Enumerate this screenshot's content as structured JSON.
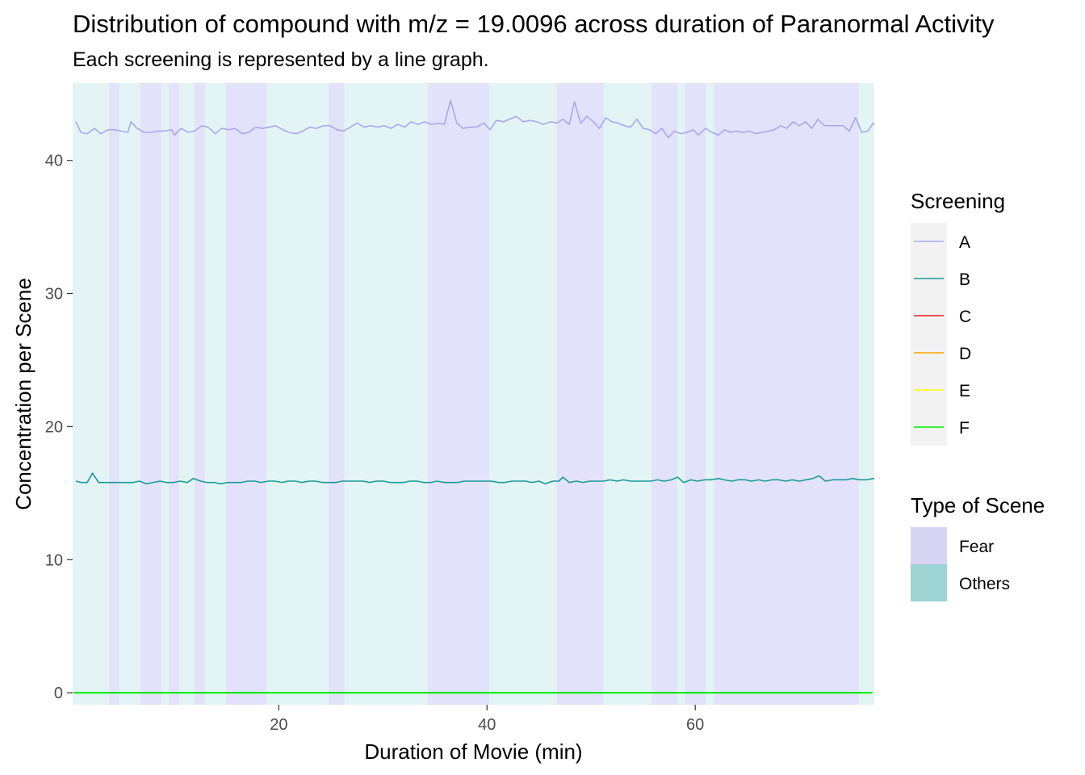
{
  "chart_data": {
    "type": "line",
    "title": "Distribution of compound with m/z = 19.0096 across duration of Paranormal Activity",
    "subtitle": "Each screening is represented by a line graph.",
    "xlabel": "Duration of Movie (min)",
    "ylabel": "Concentration per Scene",
    "xlim": [
      0.2,
      77.2
    ],
    "ylim": [
      -0.9,
      45.8
    ],
    "x_ticks": [
      20,
      40,
      60
    ],
    "y_ticks": [
      0,
      10,
      20,
      30,
      40
    ],
    "grid": false,
    "legend_placement": "right",
    "scene_legend": {
      "title": "Type of Scene",
      "items": [
        {
          "name": "Fear",
          "color": "#d8d4f4"
        },
        {
          "name": "Others",
          "color": "#9dd3d3"
        }
      ]
    },
    "scene_bands": {
      "others_color": "#e3f4f4",
      "fear_color": "#e3e2fb",
      "fear_intervals": [
        [
          3.7,
          4.7
        ],
        [
          6.7,
          8.7
        ],
        [
          9.4,
          10.4
        ],
        [
          11.9,
          12.9
        ],
        [
          14.9,
          18.8
        ],
        [
          24.8,
          26.3
        ],
        [
          34.3,
          40.2
        ],
        [
          46.7,
          51.2
        ],
        [
          55.8,
          58.3
        ],
        [
          59.0,
          61.0
        ],
        [
          61.8,
          75.7
        ]
      ]
    },
    "series_legend_title": "Screening",
    "series": [
      {
        "name": "A",
        "color": "#a8a8ee",
        "points": [
          [
            0.5,
            42.9
          ],
          [
            1.0,
            42.1
          ],
          [
            1.6,
            42.0
          ],
          [
            2.3,
            42.4
          ],
          [
            2.9,
            42.0
          ],
          [
            3.6,
            42.3
          ],
          [
            4.2,
            42.3
          ],
          [
            4.9,
            42.2
          ],
          [
            5.5,
            42.1
          ],
          [
            5.8,
            42.9
          ],
          [
            6.4,
            42.4
          ],
          [
            7.1,
            42.1
          ],
          [
            7.7,
            42.1
          ],
          [
            8.4,
            42.2
          ],
          [
            9.0,
            42.2
          ],
          [
            9.7,
            42.3
          ],
          [
            10.0,
            41.9
          ],
          [
            10.6,
            42.4
          ],
          [
            11.3,
            42.1
          ],
          [
            11.9,
            42.2
          ],
          [
            12.6,
            42.6
          ],
          [
            13.2,
            42.5
          ],
          [
            13.9,
            42.0
          ],
          [
            14.5,
            42.4
          ],
          [
            15.2,
            42.3
          ],
          [
            15.8,
            42.4
          ],
          [
            16.5,
            42.0
          ],
          [
            17.1,
            42.1
          ],
          [
            17.8,
            42.5
          ],
          [
            18.4,
            42.4
          ],
          [
            19.1,
            42.5
          ],
          [
            19.7,
            42.6
          ],
          [
            20.4,
            42.3
          ],
          [
            21.0,
            42.1
          ],
          [
            21.7,
            42.0
          ],
          [
            22.3,
            42.2
          ],
          [
            23.0,
            42.5
          ],
          [
            23.6,
            42.4
          ],
          [
            24.3,
            42.6
          ],
          [
            24.9,
            42.6
          ],
          [
            25.6,
            42.3
          ],
          [
            26.2,
            42.2
          ],
          [
            26.9,
            42.5
          ],
          [
            27.5,
            42.8
          ],
          [
            28.2,
            42.5
          ],
          [
            28.8,
            42.6
          ],
          [
            29.5,
            42.5
          ],
          [
            30.1,
            42.6
          ],
          [
            30.8,
            42.4
          ],
          [
            31.4,
            42.7
          ],
          [
            32.1,
            42.5
          ],
          [
            32.7,
            42.9
          ],
          [
            33.4,
            42.7
          ],
          [
            34.0,
            42.9
          ],
          [
            34.7,
            42.7
          ],
          [
            35.3,
            42.8
          ],
          [
            35.9,
            42.7
          ],
          [
            36.5,
            44.5
          ],
          [
            37.1,
            42.8
          ],
          [
            37.7,
            42.4
          ],
          [
            38.4,
            42.5
          ],
          [
            39.0,
            42.5
          ],
          [
            39.7,
            42.8
          ],
          [
            40.3,
            42.3
          ],
          [
            40.9,
            43.0
          ],
          [
            41.6,
            42.9
          ],
          [
            42.2,
            43.1
          ],
          [
            42.8,
            43.3
          ],
          [
            43.5,
            42.9
          ],
          [
            44.1,
            43.0
          ],
          [
            44.8,
            42.9
          ],
          [
            45.4,
            42.7
          ],
          [
            46.1,
            42.9
          ],
          [
            46.7,
            42.8
          ],
          [
            47.3,
            43.1
          ],
          [
            47.9,
            42.7
          ],
          [
            48.4,
            44.4
          ],
          [
            49.0,
            42.8
          ],
          [
            49.6,
            43.3
          ],
          [
            50.2,
            42.9
          ],
          [
            50.8,
            42.4
          ],
          [
            51.4,
            43.2
          ],
          [
            52.0,
            42.9
          ],
          [
            52.6,
            42.8
          ],
          [
            53.2,
            42.6
          ],
          [
            53.8,
            42.5
          ],
          [
            54.4,
            43.1
          ],
          [
            55.0,
            42.4
          ],
          [
            55.6,
            42.3
          ],
          [
            56.2,
            42.0
          ],
          [
            56.8,
            42.4
          ],
          [
            57.4,
            41.7
          ],
          [
            58.0,
            42.2
          ],
          [
            58.6,
            42.0
          ],
          [
            59.2,
            42.1
          ],
          [
            59.8,
            42.3
          ],
          [
            60.3,
            41.9
          ],
          [
            61.0,
            42.4
          ],
          [
            61.6,
            42.1
          ],
          [
            62.2,
            41.9
          ],
          [
            62.8,
            42.3
          ],
          [
            63.4,
            42.1
          ],
          [
            64.0,
            42.2
          ],
          [
            64.6,
            42.1
          ],
          [
            65.2,
            42.2
          ],
          [
            65.8,
            42.0
          ],
          [
            66.4,
            42.1
          ],
          [
            67.0,
            42.2
          ],
          [
            67.6,
            42.3
          ],
          [
            68.2,
            42.6
          ],
          [
            68.8,
            42.4
          ],
          [
            69.4,
            42.9
          ],
          [
            70.0,
            42.6
          ],
          [
            70.6,
            42.9
          ],
          [
            71.2,
            42.4
          ],
          [
            71.8,
            43.1
          ],
          [
            72.4,
            42.6
          ],
          [
            73.0,
            42.6
          ],
          [
            73.6,
            42.6
          ],
          [
            74.2,
            42.6
          ],
          [
            74.8,
            42.2
          ],
          [
            75.4,
            43.2
          ],
          [
            76.0,
            42.1
          ],
          [
            76.6,
            42.2
          ],
          [
            77.1,
            42.8
          ],
          [
            77.7,
            42.1
          ],
          [
            78.3,
            41.9
          ]
        ]
      },
      {
        "name": "B",
        "color": "#1a9a9a",
        "points": [
          [
            0.5,
            15.9
          ],
          [
            1.0,
            15.8
          ],
          [
            1.6,
            15.8
          ],
          [
            2.1,
            16.5
          ],
          [
            2.7,
            15.8
          ],
          [
            3.4,
            15.8
          ],
          [
            4.0,
            15.8
          ],
          [
            4.7,
            15.8
          ],
          [
            5.3,
            15.8
          ],
          [
            6.0,
            15.8
          ],
          [
            6.6,
            15.9
          ],
          [
            7.3,
            15.7
          ],
          [
            7.9,
            15.8
          ],
          [
            8.6,
            15.9
          ],
          [
            9.2,
            15.8
          ],
          [
            9.9,
            15.8
          ],
          [
            10.5,
            15.9
          ],
          [
            11.2,
            15.8
          ],
          [
            11.8,
            16.1
          ],
          [
            12.5,
            15.9
          ],
          [
            13.1,
            15.8
          ],
          [
            13.8,
            15.8
          ],
          [
            14.4,
            15.7
          ],
          [
            15.1,
            15.8
          ],
          [
            15.7,
            15.8
          ],
          [
            16.4,
            15.8
          ],
          [
            17.0,
            15.9
          ],
          [
            17.7,
            15.9
          ],
          [
            18.3,
            15.8
          ],
          [
            19.0,
            15.9
          ],
          [
            19.6,
            15.9
          ],
          [
            20.3,
            15.8
          ],
          [
            20.9,
            15.9
          ],
          [
            21.6,
            15.9
          ],
          [
            22.2,
            15.8
          ],
          [
            22.9,
            15.9
          ],
          [
            23.5,
            15.9
          ],
          [
            24.2,
            15.8
          ],
          [
            24.8,
            15.8
          ],
          [
            25.5,
            15.8
          ],
          [
            26.1,
            15.9
          ],
          [
            26.8,
            15.9
          ],
          [
            27.4,
            15.9
          ],
          [
            28.1,
            15.9
          ],
          [
            28.7,
            15.8
          ],
          [
            29.4,
            15.9
          ],
          [
            30.0,
            15.9
          ],
          [
            30.7,
            15.8
          ],
          [
            31.3,
            15.8
          ],
          [
            32.0,
            15.8
          ],
          [
            32.6,
            15.9
          ],
          [
            33.3,
            15.9
          ],
          [
            33.9,
            15.8
          ],
          [
            34.6,
            15.8
          ],
          [
            35.2,
            15.9
          ],
          [
            35.9,
            15.8
          ],
          [
            36.5,
            15.8
          ],
          [
            37.2,
            15.8
          ],
          [
            37.8,
            15.9
          ],
          [
            38.5,
            15.9
          ],
          [
            39.1,
            15.9
          ],
          [
            39.8,
            15.9
          ],
          [
            40.4,
            15.9
          ],
          [
            41.1,
            15.8
          ],
          [
            41.7,
            15.8
          ],
          [
            42.4,
            15.9
          ],
          [
            43.0,
            15.9
          ],
          [
            43.7,
            15.9
          ],
          [
            44.3,
            15.8
          ],
          [
            45.0,
            15.9
          ],
          [
            45.6,
            15.7
          ],
          [
            46.3,
            15.9
          ],
          [
            46.9,
            15.9
          ],
          [
            47.3,
            16.2
          ],
          [
            47.9,
            15.8
          ],
          [
            48.6,
            15.9
          ],
          [
            49.2,
            15.8
          ],
          [
            49.9,
            15.9
          ],
          [
            50.5,
            15.9
          ],
          [
            51.2,
            15.9
          ],
          [
            51.8,
            16.0
          ],
          [
            52.5,
            15.9
          ],
          [
            53.1,
            16.0
          ],
          [
            53.8,
            15.9
          ],
          [
            54.4,
            15.9
          ],
          [
            55.1,
            15.9
          ],
          [
            55.7,
            15.9
          ],
          [
            56.4,
            16.0
          ],
          [
            57.0,
            15.9
          ],
          [
            57.7,
            16.0
          ],
          [
            58.3,
            16.2
          ],
          [
            58.9,
            15.8
          ],
          [
            59.6,
            16.0
          ],
          [
            60.2,
            15.9
          ],
          [
            60.9,
            16.0
          ],
          [
            61.5,
            16.0
          ],
          [
            62.2,
            16.1
          ],
          [
            62.8,
            16.0
          ],
          [
            63.5,
            15.9
          ],
          [
            64.1,
            16.0
          ],
          [
            64.8,
            16.0
          ],
          [
            65.4,
            15.9
          ],
          [
            66.1,
            16.0
          ],
          [
            66.7,
            15.9
          ],
          [
            67.4,
            16.0
          ],
          [
            68.0,
            16.0
          ],
          [
            68.7,
            15.9
          ],
          [
            69.3,
            16.0
          ],
          [
            70.0,
            15.9
          ],
          [
            70.6,
            16.0
          ],
          [
            71.3,
            16.1
          ],
          [
            71.9,
            16.3
          ],
          [
            72.5,
            15.9
          ],
          [
            73.2,
            16.0
          ],
          [
            73.8,
            16.0
          ],
          [
            74.5,
            16.0
          ],
          [
            75.1,
            16.1
          ],
          [
            75.8,
            16.0
          ],
          [
            76.4,
            16.0
          ],
          [
            77.1,
            16.1
          ],
          [
            77.7,
            16.0
          ]
        ]
      },
      {
        "name": "C",
        "color": "#e31a1c",
        "points": [
          [
            0.3,
            0.0
          ],
          [
            77.0,
            0.0
          ]
        ]
      },
      {
        "name": "D",
        "color": "#ffa500",
        "points": [
          [
            0.3,
            0.0
          ],
          [
            77.0,
            0.0
          ]
        ]
      },
      {
        "name": "E",
        "color": "#ffff00",
        "points": [
          [
            0.3,
            0.0
          ],
          [
            77.0,
            0.0
          ]
        ]
      },
      {
        "name": "F",
        "color": "#00ee00",
        "points": [
          [
            0.3,
            0.0
          ],
          [
            77.0,
            0.0
          ]
        ]
      }
    ]
  }
}
